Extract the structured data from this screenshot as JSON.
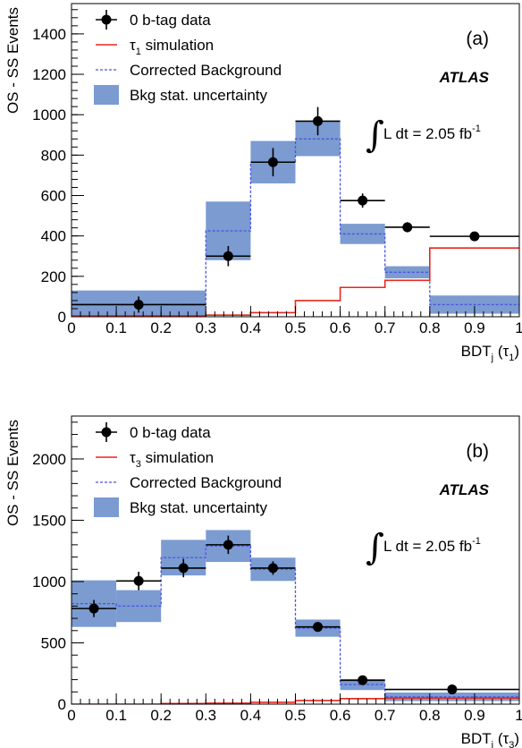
{
  "chart_data": [
    {
      "type": "histogram",
      "panel_label": "(a)",
      "brand": "ATLAS",
      "lumi_text": "L dt = 2.05 fb",
      "lumi_exponent": "-1",
      "ylabel": "OS - SS Events",
      "xlabel_main": "BDT",
      "xlabel_sub": "j",
      "xlabel_arg": " (τ",
      "xlabel_arg_sub": "1",
      "xlabel_close": ")",
      "xlim": [
        0,
        1
      ],
      "ylim": [
        0,
        1550
      ],
      "x_ticks": [
        0,
        0.1,
        0.2,
        0.3,
        0.4,
        0.5,
        0.6,
        0.7,
        0.8,
        0.9,
        1
      ],
      "x_tick_labels": [
        "0",
        "0.1",
        "0.2",
        "0.3",
        "0.4",
        "0.5",
        "0.6",
        "0.7",
        "0.8",
        "0.9",
        "1"
      ],
      "y_ticks": [
        0,
        200,
        400,
        600,
        800,
        1000,
        1200,
        1400
      ],
      "y_tick_labels": [
        "0",
        "200",
        "400",
        "600",
        "800",
        "1000",
        "1200",
        "1400"
      ],
      "y_minor_step": 40,
      "x_minor_step": 0.02,
      "legend": {
        "data": "0 b-tag data",
        "sim_prefix": "τ",
        "sim_sub": "1",
        "sim_suffix": " simulation",
        "bkg": "Corrected Background",
        "unc": "Bkg stat. uncertainty"
      },
      "bins": [
        0,
        0.3,
        0.4,
        0.5,
        0.6,
        0.7,
        0.8,
        1.0
      ],
      "data_points": [
        {
          "x": 0.15,
          "y": 60,
          "yerr": 40
        },
        {
          "x": 0.35,
          "y": 300,
          "yerr": 50
        },
        {
          "x": 0.45,
          "y": 765,
          "yerr": 70
        },
        {
          "x": 0.55,
          "y": 968,
          "yerr": 70
        },
        {
          "x": 0.65,
          "y": 575,
          "yerr": 35
        },
        {
          "x": 0.75,
          "y": 443,
          "yerr": 25
        },
        {
          "x": 0.9,
          "y": 398,
          "yerr": 15
        }
      ],
      "simulation": [
        5,
        8,
        20,
        80,
        145,
        180,
        340
      ],
      "background": [
        60,
        425,
        765,
        880,
        410,
        220,
        60
      ],
      "background_unc": [
        70,
        145,
        105,
        85,
        50,
        30,
        45
      ]
    },
    {
      "type": "histogram",
      "panel_label": "(b)",
      "brand": "ATLAS",
      "lumi_text": "L dt = 2.05 fb",
      "lumi_exponent": "-1",
      "ylabel": "OS - SS Events",
      "xlabel_main": "BDT",
      "xlabel_sub": "j",
      "xlabel_arg": " (τ",
      "xlabel_arg_sub": "3",
      "xlabel_close": ")",
      "xlim": [
        0,
        1
      ],
      "ylim": [
        0,
        2350
      ],
      "x_ticks": [
        0,
        0.1,
        0.2,
        0.3,
        0.4,
        0.5,
        0.6,
        0.7,
        0.8,
        0.9,
        1
      ],
      "x_tick_labels": [
        "0",
        "0.1",
        "0.2",
        "0.3",
        "0.4",
        "0.5",
        "0.6",
        "0.7",
        "0.8",
        "0.9",
        "1"
      ],
      "y_ticks": [
        0,
        500,
        1000,
        1500,
        2000
      ],
      "y_tick_labels": [
        "0",
        "500",
        "1000",
        "1500",
        "2000"
      ],
      "y_minor_step": 100,
      "x_minor_step": 0.02,
      "legend": {
        "data": "0 b-tag data",
        "sim_prefix": "τ",
        "sim_sub": "3",
        "sim_suffix": " simulation",
        "bkg": "Corrected Background",
        "unc": "Bkg stat. uncertainty"
      },
      "bins": [
        0,
        0.1,
        0.2,
        0.3,
        0.4,
        0.5,
        0.6,
        0.7,
        1.0
      ],
      "data_points": [
        {
          "x": 0.05,
          "y": 780,
          "yerr": 70
        },
        {
          "x": 0.15,
          "y": 1005,
          "yerr": 75
        },
        {
          "x": 0.25,
          "y": 1110,
          "yerr": 75
        },
        {
          "x": 0.35,
          "y": 1300,
          "yerr": 75
        },
        {
          "x": 0.45,
          "y": 1110,
          "yerr": 55
        },
        {
          "x": 0.55,
          "y": 630,
          "yerr": 40
        },
        {
          "x": 0.65,
          "y": 195,
          "yerr": 20
        },
        {
          "x": 0.85,
          "y": 120,
          "yerr": 15
        }
      ],
      "simulation": [
        0,
        0,
        5,
        8,
        15,
        30,
        45,
        50
      ],
      "background": [
        820,
        800,
        1195,
        1290,
        1100,
        620,
        160,
        60
      ],
      "background_unc": [
        190,
        130,
        145,
        130,
        95,
        70,
        45,
        35
      ]
    }
  ],
  "colors": {
    "uncertainty_fill": "#7b9bd1",
    "background_line": "#4a55e0",
    "simulation_line": "#e8261c",
    "data": "#000000"
  }
}
